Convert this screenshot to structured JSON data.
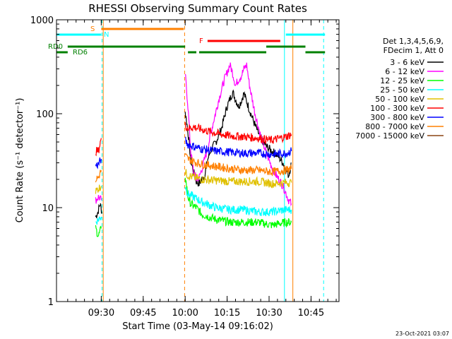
{
  "chart_data": {
    "type": "line",
    "title": "RHESSI Observing Summary Count Rates",
    "xlabel": "Start Time (03-May-14 09:16:02)",
    "ylabel": "Count Rate (s⁻¹ detector⁻¹)",
    "yscale": "log",
    "ylim": [
      1,
      1000
    ],
    "xlim_minutes": [
      -2,
      99
    ],
    "x_ticks": [
      {
        "label": "09:30",
        "t": 14
      },
      {
        "label": "09:45",
        "t": 29
      },
      {
        "label": "10:00",
        "t": 44
      },
      {
        "label": "10:15",
        "t": 59
      },
      {
        "label": "10:30",
        "t": 74
      },
      {
        "label": "10:45",
        "t": 89
      }
    ],
    "y_ticks": [
      {
        "label": "1",
        "v": 1
      },
      {
        "label": "10",
        "v": 10
      },
      {
        "label": "100",
        "v": 100
      },
      {
        "label": "1000",
        "v": 1000
      }
    ],
    "legend_header": [
      "Det 1,3,4,5,6,9,",
      "FDecim 1, Att 0"
    ],
    "legend_position": "right",
    "timestamp": "23-Oct-2021 03:07",
    "flags": {
      "S": {
        "label": "S",
        "color": "#ff8000",
        "segments": [
          [
            14,
            43.5
          ]
        ]
      },
      "N": {
        "label": "N",
        "color": "#00ffff",
        "segments": [
          [
            -2,
            14
          ],
          [
            80,
            94
          ]
        ]
      },
      "F": {
        "label": "F",
        "color": "#ff0000",
        "segments": [
          [
            52,
            78
          ]
        ]
      },
      "RD0": {
        "label": "RD0",
        "color": "#008000",
        "segments": [
          [
            2,
            44
          ],
          [
            73,
            87
          ]
        ]
      },
      "RD6": {
        "label": "RD6",
        "color": "#008000",
        "segments": [
          [
            -2,
            2
          ],
          [
            45,
            48
          ],
          [
            49,
            73
          ],
          [
            87,
            94
          ]
        ]
      }
    },
    "vlines": [
      {
        "t": -2,
        "color": "#00ffff",
        "style": "solid"
      },
      {
        "t": 14.3,
        "color": "#00ffff",
        "style": "dashed"
      },
      {
        "t": 14.7,
        "color": "#ff8000",
        "style": "solid"
      },
      {
        "t": 43.8,
        "color": "#ff8000",
        "style": "dashed"
      },
      {
        "t": 79.5,
        "color": "#00ffff",
        "style": "solid"
      },
      {
        "t": 82.5,
        "color": "#ff8000",
        "style": "solid"
      },
      {
        "t": 93.5,
        "color": "#00ffff",
        "style": "dashed"
      }
    ],
    "series": [
      {
        "name": "3 - 6 keV",
        "color": "#000000",
        "segments": [
          [
            [
              12,
              8
            ],
            [
              12.8,
              9
            ],
            [
              13.6,
              11
            ],
            [
              14.2,
              9
            ]
          ],
          [
            [
              44,
              105
            ],
            [
              45,
              65
            ],
            [
              46,
              32
            ],
            [
              47,
              24
            ],
            [
              48,
              19
            ],
            [
              49,
              18
            ],
            [
              50,
              20
            ],
            [
              51,
              22
            ],
            [
              52,
              32
            ],
            [
              53,
              40
            ],
            [
              55,
              50
            ],
            [
              57,
              70
            ],
            [
              59,
              120
            ],
            [
              61,
              170
            ],
            [
              63,
              120
            ],
            [
              64,
              135
            ],
            [
              65,
              165
            ],
            [
              67,
              110
            ],
            [
              69,
              75
            ],
            [
              71,
              55
            ],
            [
              73,
              45
            ],
            [
              75,
              40
            ],
            [
              77,
              36
            ],
            [
              79,
              30
            ],
            [
              81,
              22
            ],
            [
              82,
              30
            ]
          ]
        ]
      },
      {
        "name": "6 - 12 keV",
        "color": "#ff00ff",
        "segments": [
          [
            [
              12,
              12
            ],
            [
              13,
              13
            ],
            [
              14,
              12
            ]
          ],
          [
            [
              44,
              270
            ],
            [
              45,
              120
            ],
            [
              46,
              40
            ],
            [
              47,
              24
            ],
            [
              48,
              20
            ],
            [
              49,
              21
            ],
            [
              50,
              26
            ],
            [
              52,
              42
            ],
            [
              54,
              80
            ],
            [
              56,
              140
            ],
            [
              58,
              230
            ],
            [
              60,
              330
            ],
            [
              61,
              270
            ],
            [
              62,
              200
            ],
            [
              63,
              230
            ],
            [
              64,
              250
            ],
            [
              65,
              300
            ],
            [
              66,
              330
            ],
            [
              67,
              200
            ],
            [
              69,
              100
            ],
            [
              71,
              58
            ],
            [
              73,
              38
            ],
            [
              75,
              27
            ],
            [
              77,
              21
            ],
            [
              79,
              17
            ],
            [
              81,
              12
            ],
            [
              82,
              11
            ]
          ]
        ]
      },
      {
        "name": "12 - 25 keV",
        "color": "#00ff00",
        "segments": [
          [
            [
              12,
              6
            ],
            [
              13,
              5
            ],
            [
              14,
              6
            ]
          ],
          [
            [
              44,
              22
            ],
            [
              45,
              13
            ],
            [
              46,
              11
            ],
            [
              48,
              10
            ],
            [
              50,
              8.5
            ],
            [
              55,
              7.5
            ],
            [
              60,
              7
            ],
            [
              65,
              7
            ],
            [
              70,
              7
            ],
            [
              75,
              6.5
            ],
            [
              80,
              7
            ],
            [
              82,
              7
            ]
          ]
        ]
      },
      {
        "name": "25 - 50 keV",
        "color": "#00ffff",
        "segments": [
          [
            [
              12,
              7
            ],
            [
              13,
              7.5
            ],
            [
              14,
              8
            ]
          ],
          [
            [
              44,
              17
            ],
            [
              45,
              14
            ],
            [
              47,
              13
            ],
            [
              50,
              11.5
            ],
            [
              55,
              10
            ],
            [
              60,
              9.5
            ],
            [
              65,
              9.5
            ],
            [
              70,
              9
            ],
            [
              75,
              9
            ],
            [
              80,
              9.5
            ],
            [
              82,
              9.5
            ]
          ]
        ]
      },
      {
        "name": "50 - 100 keV",
        "color": "#e0c000",
        "segments": [
          [
            [
              12,
              15
            ],
            [
              13,
              16
            ],
            [
              14,
              17
            ]
          ],
          [
            [
              44,
              24
            ],
            [
              45,
              22
            ],
            [
              47,
              21
            ],
            [
              50,
              20
            ],
            [
              55,
              19.5
            ],
            [
              60,
              19
            ],
            [
              65,
              19
            ],
            [
              70,
              19
            ],
            [
              75,
              18
            ],
            [
              80,
              18.5
            ],
            [
              82,
              18.5
            ]
          ]
        ]
      },
      {
        "name": "100 - 300 keV",
        "color": "#ff0000",
        "segments": [
          [
            [
              12,
              40
            ],
            [
              13,
              40
            ],
            [
              14,
              55
            ]
          ],
          [
            [
              44,
              75
            ],
            [
              45,
              70
            ],
            [
              47,
              72
            ],
            [
              50,
              68
            ],
            [
              55,
              62
            ],
            [
              60,
              58
            ],
            [
              65,
              57
            ],
            [
              70,
              55
            ],
            [
              75,
              52
            ],
            [
              80,
              57
            ],
            [
              82,
              60
            ]
          ]
        ]
      },
      {
        "name": "300 - 800 keV",
        "color": "#0000ff",
        "segments": [
          [
            [
              12,
              28
            ],
            [
              13,
              29
            ],
            [
              14,
              33
            ]
          ],
          [
            [
              44,
              52
            ],
            [
              45,
              47
            ],
            [
              47,
              45
            ],
            [
              50,
              42
            ],
            [
              55,
              40
            ],
            [
              60,
              39
            ],
            [
              65,
              38
            ],
            [
              70,
              38
            ],
            [
              75,
              37
            ],
            [
              80,
              38
            ],
            [
              82,
              40
            ]
          ]
        ]
      },
      {
        "name": "800 - 7000 keV",
        "color": "#ff8000",
        "segments": [
          [
            [
              12,
              20
            ],
            [
              13,
              21
            ],
            [
              14,
              25
            ]
          ],
          [
            [
              44,
              36
            ],
            [
              45,
              33
            ],
            [
              47,
              31
            ],
            [
              50,
              29
            ],
            [
              55,
              27.5
            ],
            [
              60,
              26
            ],
            [
              65,
              25
            ],
            [
              70,
              25
            ],
            [
              75,
              24
            ],
            [
              80,
              25
            ],
            [
              82,
              26
            ]
          ]
        ]
      },
      {
        "name": "7000 - 15000 keV",
        "color": "#8b4513",
        "segments": []
      }
    ]
  }
}
